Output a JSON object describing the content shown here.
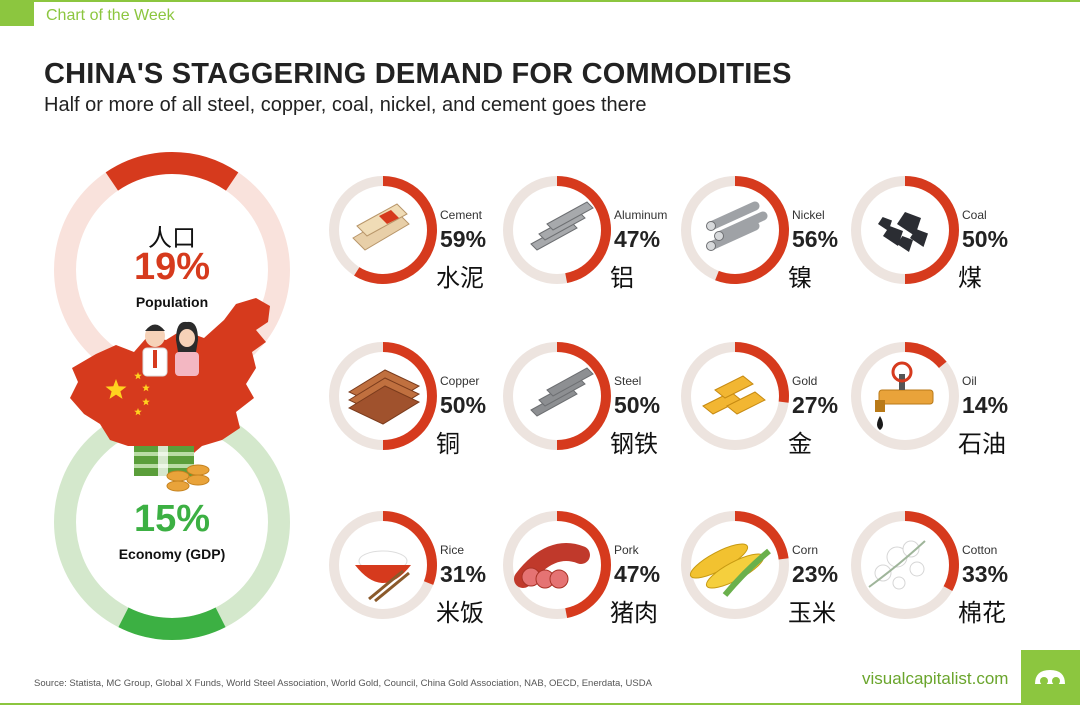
{
  "header": {
    "tag": "Chart of the Week"
  },
  "title": "CHINA'S STAGGERING DEMAND FOR COMMODITIES",
  "subtitle": "Half or more of all steel, copper, coal, nickel, and cement goes there",
  "colors": {
    "accent_red": "#d63a1d",
    "population_track": "#f9e2dc",
    "gdp_green": "#3cb043",
    "gdp_track": "#d4e8cc",
    "ring_track": "#ede4df",
    "brand_green": "#8cc63f"
  },
  "chart_data": [
    {
      "type": "pie",
      "title": "",
      "items": [
        {
          "name_zh": "人口",
          "name": "Population",
          "value": 19,
          "label": "19%",
          "color": "#d63a1d"
        },
        {
          "name": "Economy (GDP)",
          "value": 15,
          "label": "15%",
          "color": "#3cb043"
        }
      ]
    },
    {
      "type": "pie",
      "title": "",
      "items": [
        {
          "key": "cement",
          "name": "Cement",
          "name_zh": "水泥",
          "value": 59,
          "label": "59%",
          "icon": "cement-bags-icon"
        },
        {
          "key": "aluminum",
          "name": "Aluminum",
          "name_zh": "铝",
          "value": 47,
          "label": "47%",
          "icon": "aluminum-bars-icon"
        },
        {
          "key": "nickel",
          "name": "Nickel",
          "name_zh": "镍",
          "value": 56,
          "label": "56%",
          "icon": "nickel-rods-icon"
        },
        {
          "key": "coal",
          "name": "Coal",
          "name_zh": "煤",
          "value": 50,
          "label": "50%",
          "icon": "coal-lumps-icon"
        },
        {
          "key": "copper",
          "name": "Copper",
          "name_zh": "铜",
          "value": 50,
          "label": "50%",
          "icon": "copper-sheets-icon"
        },
        {
          "key": "steel",
          "name": "Steel",
          "name_zh": "钢铁",
          "value": 50,
          "label": "50%",
          "icon": "steel-beams-icon"
        },
        {
          "key": "gold",
          "name": "Gold",
          "name_zh": "金",
          "value": 27,
          "label": "27%",
          "icon": "gold-bars-icon"
        },
        {
          "key": "oil",
          "name": "Oil",
          "name_zh": "石油",
          "value": 14,
          "label": "14%",
          "icon": "oil-pipe-icon"
        },
        {
          "key": "rice",
          "name": "Rice",
          "name_zh": "米饭",
          "value": 31,
          "label": "31%",
          "icon": "rice-bowl-icon"
        },
        {
          "key": "pork",
          "name": "Pork",
          "name_zh": "猪肉",
          "value": 47,
          "label": "47%",
          "icon": "pork-sausage-icon"
        },
        {
          "key": "corn",
          "name": "Corn",
          "name_zh": "玉米",
          "value": 23,
          "label": "23%",
          "icon": "corn-cob-icon"
        },
        {
          "key": "cotton",
          "name": "Cotton",
          "name_zh": "棉花",
          "value": 33,
          "label": "33%",
          "icon": "cotton-flower-icon"
        }
      ]
    }
  ],
  "footer": {
    "source": "Source: Statista, MC Group, Global X Funds, World Steel Association, World Gold, Council, China Gold Association, NAB, OECD, Enerdata, USDA",
    "brand": "visualcapitalist.com",
    "logo_icon": "visual-capitalist-logo-icon"
  }
}
